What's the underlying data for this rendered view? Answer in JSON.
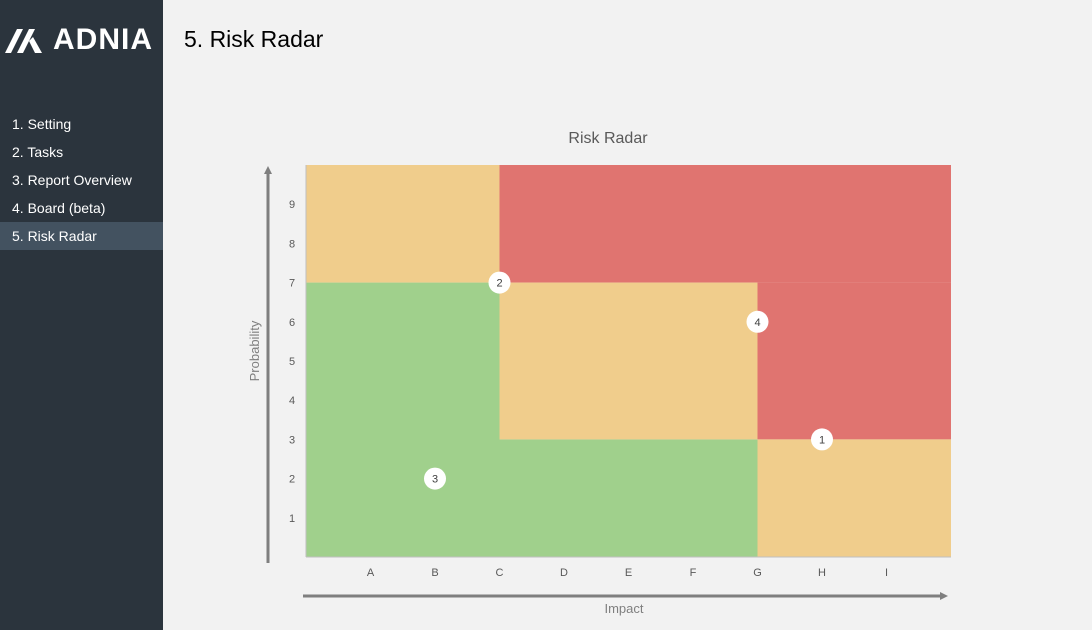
{
  "brand": {
    "name": "ADNIA"
  },
  "sidebar": {
    "items": [
      {
        "label": "1. Setting"
      },
      {
        "label": "2. Tasks"
      },
      {
        "label": "3. Report Overview"
      },
      {
        "label": "4. Board (beta)"
      },
      {
        "label": "5. Risk Radar",
        "active": true
      }
    ]
  },
  "page": {
    "title": "5. Risk Radar"
  },
  "chart_data": {
    "type": "scatter",
    "title": "Risk Radar",
    "xlabel": "Impact",
    "ylabel": "Probability",
    "xlim": [
      0,
      10
    ],
    "ylim": [
      0,
      10
    ],
    "x_ticks": [
      {
        "v": 1,
        "label": "A"
      },
      {
        "v": 2,
        "label": "B"
      },
      {
        "v": 3,
        "label": "C"
      },
      {
        "v": 4,
        "label": "D"
      },
      {
        "v": 5,
        "label": "E"
      },
      {
        "v": 6,
        "label": "F"
      },
      {
        "v": 7,
        "label": "G"
      },
      {
        "v": 8,
        "label": "H"
      },
      {
        "v": 9,
        "label": "I"
      }
    ],
    "y_ticks": [
      {
        "v": 1,
        "label": "1"
      },
      {
        "v": 2,
        "label": "2"
      },
      {
        "v": 3,
        "label": "3"
      },
      {
        "v": 4,
        "label": "4"
      },
      {
        "v": 5,
        "label": "5"
      },
      {
        "v": 6,
        "label": "6"
      },
      {
        "v": 7,
        "label": "7"
      },
      {
        "v": 8,
        "label": "8"
      },
      {
        "v": 9,
        "label": "9"
      }
    ],
    "zones": [
      {
        "level": "medium",
        "x": [
          0,
          3
        ],
        "y": [
          7,
          10
        ],
        "color": "#f0cd8c"
      },
      {
        "level": "high",
        "x": [
          3,
          10
        ],
        "y": [
          7,
          10
        ],
        "color": "#e07470"
      },
      {
        "level": "high",
        "x": [
          7,
          10
        ],
        "y": [
          3,
          7
        ],
        "color": "#e07470"
      },
      {
        "level": "low",
        "x": [
          0,
          3
        ],
        "y": [
          0,
          7
        ],
        "color": "#a0d08c"
      },
      {
        "level": "low",
        "x": [
          3,
          7
        ],
        "y": [
          0,
          3
        ],
        "color": "#a0d08c"
      },
      {
        "level": "medium",
        "x": [
          3,
          7
        ],
        "y": [
          3,
          7
        ],
        "color": "#f0cd8c"
      },
      {
        "level": "medium",
        "x": [
          7,
          10
        ],
        "y": [
          0,
          3
        ],
        "color": "#f0cd8c"
      }
    ],
    "points": [
      {
        "label": "1",
        "x": 8,
        "y": 3
      },
      {
        "label": "2",
        "x": 3,
        "y": 7
      },
      {
        "label": "3",
        "x": 2,
        "y": 2
      },
      {
        "label": "4",
        "x": 7,
        "y": 6
      }
    ]
  }
}
